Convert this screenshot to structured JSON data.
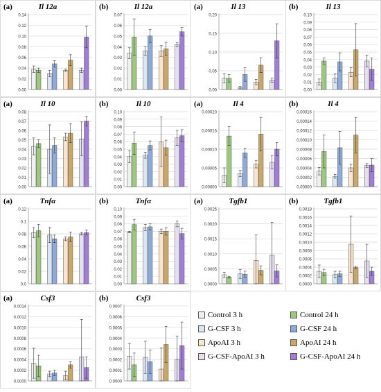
{
  "legend": {
    "items": [
      {
        "label": "Control 3 h",
        "color": "#f0f0f0"
      },
      {
        "label": "Control 24 h",
        "color": "#9cc97e"
      },
      {
        "label": "G-CSF 3 h",
        "color": "#dbe5f3"
      },
      {
        "label": "G-CSF 24 h",
        "color": "#8eaadb"
      },
      {
        "label": "ApoAI 3 h",
        "color": "#fbe4cf"
      },
      {
        "label": "ApoAI 24 h",
        "color": "#c9a867"
      },
      {
        "label": "G-CSF-ApoAI 3 h",
        "color": "#e5dff0"
      },
      {
        "label": "G-CSF-ApoAI 24 h",
        "color": "#a17dd9"
      }
    ]
  },
  "chart_data": [
    {
      "type": "bar",
      "panel": "(a)",
      "title": "Il 12a",
      "categories": [
        "Control",
        "G-CSF",
        "ApoAI",
        "G-CSF-ApoAI"
      ],
      "series": [
        {
          "name": "3 h",
          "values": [
            0.038,
            0.03,
            0.036,
            0.036
          ],
          "errors": [
            0.006,
            0.006,
            0.002,
            0.004
          ]
        },
        {
          "name": "24 h",
          "values": [
            0.036,
            0.048,
            0.055,
            0.098
          ],
          "errors": [
            0.004,
            0.006,
            0.01,
            0.02
          ]
        }
      ],
      "ylim": [
        0,
        0.14
      ],
      "yticks": [
        "0.00",
        "0.02",
        "0.04",
        "0.06",
        "0.08",
        "0.10",
        "0.12",
        "0.14"
      ]
    },
    {
      "type": "bar",
      "panel": "(b)",
      "title": "Il 12a",
      "categories": [
        "Control",
        "G-CSF",
        "ApoAI",
        "G-CSF-ApoAI"
      ],
      "series": [
        {
          "name": "3 h",
          "values": [
            0.034,
            0.036,
            0.036,
            0.042
          ],
          "errors": [
            0.005,
            0.004,
            0.005,
            0.002
          ]
        },
        {
          "name": "24 h",
          "values": [
            0.049,
            0.05,
            0.038,
            0.054
          ],
          "errors": [
            0.017,
            0.006,
            0.006,
            0.004
          ]
        }
      ],
      "ylim": [
        0,
        0.07
      ],
      "yticks": [
        "0.00",
        "0.01",
        "0.02",
        "0.03",
        "0.04",
        "0.05",
        "0.06",
        "0.07"
      ]
    },
    {
      "type": "bar",
      "panel": "(a)",
      "title": "Il 13",
      "categories": [
        "Control",
        "G-CSF",
        "ApoAI",
        "G-CSF-ApoAI"
      ],
      "series": [
        {
          "name": "3 h",
          "values": [
            0.03,
            0.005,
            0.02,
            0.025
          ],
          "errors": [
            0.012,
            0.003,
            0.007,
            0.006
          ]
        },
        {
          "name": "24 h",
          "values": [
            0.03,
            0.04,
            0.065,
            0.13
          ],
          "errors": [
            0.01,
            0.018,
            0.02,
            0.045
          ]
        }
      ],
      "ylim": [
        0,
        0.2
      ],
      "yticks": [
        "0.00",
        "0.05",
        "0.10",
        "0.15",
        "0.20"
      ]
    },
    {
      "type": "bar",
      "panel": "(b)",
      "title": "Il 13",
      "categories": [
        "Control",
        "G-CSF",
        "ApoAI",
        "G-CSF-ApoAI"
      ],
      "series": [
        {
          "name": "3 h",
          "values": [
            0.01,
            0.015,
            0.023,
            0.038
          ],
          "errors": [
            0.004,
            0.006,
            0.006,
            0.008
          ]
        },
        {
          "name": "24 h",
          "values": [
            0.038,
            0.037,
            0.053,
            0.027
          ],
          "errors": [
            0.004,
            0.012,
            0.035,
            0.015
          ]
        }
      ],
      "ylim": [
        0,
        0.1
      ],
      "yticks": [
        "0.00",
        "0.01",
        "0.02",
        "0.03",
        "0.04",
        "0.05",
        "0.06",
        "0.07",
        "0.08",
        "0.09",
        "0.10"
      ]
    },
    {
      "type": "bar",
      "panel": "(a)",
      "title": "Il 10",
      "categories": [
        "Control",
        "G-CSF",
        "ApoAI",
        "G-CSF-ApoAI"
      ],
      "series": [
        {
          "name": "3 h",
          "values": [
            0.043,
            0.04,
            0.053,
            0.051
          ],
          "errors": [
            0.009,
            0.026,
            0.004,
            0.018
          ]
        },
        {
          "name": "24 h",
          "values": [
            0.046,
            0.044,
            0.057,
            0.07
          ],
          "errors": [
            0.004,
            0.008,
            0.01,
            0.005
          ]
        }
      ],
      "ylim": [
        0,
        0.08
      ],
      "yticks": [
        "0.00",
        "0.01",
        "0.02",
        "0.03",
        "0.04",
        "0.05",
        "0.06",
        "0.07",
        "0.08"
      ]
    },
    {
      "type": "bar",
      "panel": "(b)",
      "title": "Il 10",
      "categories": [
        "Control",
        "G-CSF",
        "ApoAI",
        "G-CSF-ApoAI"
      ],
      "series": [
        {
          "name": "3 h",
          "values": [
            0.04,
            0.042,
            0.06,
            0.065
          ],
          "errors": [
            0.008,
            0.004,
            0.033,
            0.01
          ]
        },
        {
          "name": "24 h",
          "values": [
            0.058,
            0.055,
            0.052,
            0.068
          ],
          "errors": [
            0.015,
            0.006,
            0.01,
            0.008
          ]
        }
      ],
      "ylim": [
        0,
        0.1
      ],
      "yticks": [
        "0.00",
        "0.01",
        "0.02",
        "0.03",
        "0.04",
        "0.05",
        "0.06",
        "0.07",
        "0.08",
        "0.09",
        "0.10"
      ]
    },
    {
      "type": "bar",
      "panel": "(a)",
      "title": "Il 4",
      "categories": [
        "Control",
        "G-CSF",
        "ApoAI",
        "G-CSF-ApoAI"
      ],
      "series": [
        {
          "name": "3 h",
          "values": [
            3e-05,
            3.5e-05,
            6e-05,
            6.5e-05
          ],
          "errors": [
            2e-05,
            8e-06,
            1e-05,
            1.8e-05
          ]
        },
        {
          "name": "24 h",
          "values": [
            0.000135,
            9e-05,
            0.00014,
            0.0001
          ],
          "errors": [
            2.5e-05,
            1.2e-05,
            4.5e-05,
            1.8e-05
          ]
        }
      ],
      "ylim": [
        0,
        0.0002
      ],
      "yticks": [
        "0.00000",
        "0.00005",
        "0.00010",
        "0.00015",
        "0.00020"
      ]
    },
    {
      "type": "bar",
      "panel": "(b)",
      "title": "Il 4",
      "categories": [
        "Control",
        "G-CSF",
        "ApoAI",
        "G-CSF-ApoAI"
      ],
      "series": [
        {
          "name": "3 h",
          "values": [
            3.3e-05,
            2.2e-05,
            4e-05,
            4.5e-05
          ],
          "errors": [
            8e-06,
            4e-06,
            8e-06,
            4e-06
          ]
        },
        {
          "name": "24 h",
          "values": [
            7.5e-05,
            8.3e-05,
            0.00011,
            4.6e-05
          ],
          "errors": [
            3.5e-05,
            3.5e-05,
            3.8e-05,
            1.4e-05
          ]
        }
      ],
      "ylim": [
        0,
        0.00016
      ],
      "yticks": [
        "0.00000",
        "0.00002",
        "0.00004",
        "0.00006",
        "0.00008",
        "0.00010",
        "0.00012",
        "0.00014",
        "0.00016"
      ]
    },
    {
      "type": "bar",
      "panel": "(a)",
      "title": "Tnfα",
      "categories": [
        "Control",
        "G-CSF",
        "ApoAI",
        "G-CSF-ApoAI"
      ],
      "series": [
        {
          "name": "3 h",
          "values": [
            0.082,
            0.078,
            0.072,
            0.08
          ],
          "errors": [
            0.008,
            0.012,
            0.003,
            0.002
          ]
        },
        {
          "name": "24 h",
          "values": [
            0.085,
            0.072,
            0.075,
            0.082
          ],
          "errors": [
            0.01,
            0.006,
            0.008,
            0.004
          ]
        }
      ],
      "ylim": [
        0,
        0.12
      ],
      "yticks": [
        "0.0",
        "0.02",
        "0.04",
        "0.06",
        "0.08",
        "0.1",
        "0.12"
      ]
    },
    {
      "type": "bar",
      "panel": "(b)",
      "title": "Tnfα",
      "categories": [
        "Control",
        "G-CSF",
        "ApoAI",
        "G-CSF-ApoAI"
      ],
      "series": [
        {
          "name": "3 h",
          "values": [
            0.069,
            0.075,
            0.07,
            0.08
          ],
          "errors": [
            0.001,
            0.004,
            0.003,
            0.004
          ]
        },
        {
          "name": "24 h",
          "values": [
            0.079,
            0.076,
            0.07,
            0.067
          ],
          "errors": [
            0.007,
            0.004,
            0.005,
            0.007
          ]
        }
      ],
      "ylim": [
        0,
        0.1
      ],
      "yticks": [
        "0.00",
        "0.01",
        "0.02",
        "0.03",
        "0.04",
        "0.05",
        "0.06",
        "0.07",
        "0.08",
        "0.09",
        "0.10"
      ]
    },
    {
      "type": "bar",
      "panel": "(a)",
      "title": "Tgfb1",
      "categories": [
        "Control",
        "G-CSF",
        "ApoAI",
        "G-CSF-ApoAI"
      ],
      "series": [
        {
          "name": "3 h",
          "values": [
            0.0003,
            0.00033,
            0.00078,
            0.00095
          ],
          "errors": [
            8e-05,
            0.00015,
            0.00085,
            0.0011
          ]
        },
        {
          "name": "24 h",
          "values": [
            0.00022,
            0.00032,
            0.00045,
            0.00043
          ],
          "errors": [
            3e-05,
            0.0001,
            0.00015,
            0.0002
          ]
        }
      ],
      "ylim": [
        0,
        0.0025
      ],
      "yticks": [
        "0.0000",
        "0.0005",
        "0.0010",
        "0.0015",
        "0.0020",
        "0.0025"
      ]
    },
    {
      "type": "bar",
      "panel": "(b)",
      "title": "Tgfb1",
      "categories": [
        "Control",
        "G-CSF",
        "ApoAI",
        "G-CSF-ApoAI"
      ],
      "series": [
        {
          "name": "3 h",
          "values": [
            0.0003,
            0.00022,
            0.00095,
            0.00055
          ],
          "errors": [
            0.00015,
            8e-05,
            0.00068,
            0.0004
          ]
        },
        {
          "name": "24 h",
          "values": [
            0.00027,
            0.00024,
            0.00039,
            0.0003
          ],
          "errors": [
            8e-05,
            6e-05,
            3e-05,
            0.0001
          ]
        }
      ],
      "ylim": [
        0,
        0.0018
      ],
      "yticks": [
        "0.0000",
        "0.0002",
        "0.0004",
        "0.0006",
        "0.0008",
        "0.0010",
        "0.0012",
        "0.0014",
        "0.0016",
        "0.0018"
      ]
    },
    {
      "type": "bar",
      "panel": "(a)",
      "title": "Csf3",
      "categories": [
        "Control",
        "G-CSF",
        "ApoAI",
        "G-CSF-ApoAI"
      ],
      "series": [
        {
          "name": "3 h",
          "values": [
            0.00033,
            0.00013,
            0.0001,
            0.00045
          ],
          "errors": [
            0.00028,
            5e-05,
            8e-05,
            0.0007
          ]
        },
        {
          "name": "24 h",
          "values": [
            0.00028,
            0.00015,
            0.0003,
            0.00025
          ],
          "errors": [
            0.0002,
            5e-05,
            6e-05,
            0.0002
          ]
        }
      ],
      "ylim": [
        0,
        0.0014
      ],
      "yticks": [
        "0.0000",
        "0.0002",
        "0.0004",
        "0.0006",
        "0.0008",
        "0.0010",
        "0.0012",
        "0.0014"
      ]
    },
    {
      "type": "bar",
      "panel": "(b)",
      "title": "Csf3",
      "categories": [
        "Control",
        "G-CSF",
        "ApoAI",
        "G-CSF-ApoAI"
      ],
      "series": [
        {
          "name": "3 h",
          "values": [
            0.00023,
            0.00022,
            0.00011,
            0.0002
          ],
          "errors": [
            0.00012,
            0.00015,
            0.0002,
            0.00022
          ]
        },
        {
          "name": "24 h",
          "values": [
            0.00015,
            0.00018,
            0.00034,
            0.00033
          ],
          "errors": [
            0.00011,
            0.00011,
            0.00017,
            0.00022
          ]
        }
      ],
      "ylim": [
        0,
        0.0007
      ],
      "yticks": [
        "0.0000",
        "0.0001",
        "0.0002",
        "0.0003",
        "0.0004",
        "0.0005",
        "0.0006",
        "0.0007"
      ]
    }
  ]
}
